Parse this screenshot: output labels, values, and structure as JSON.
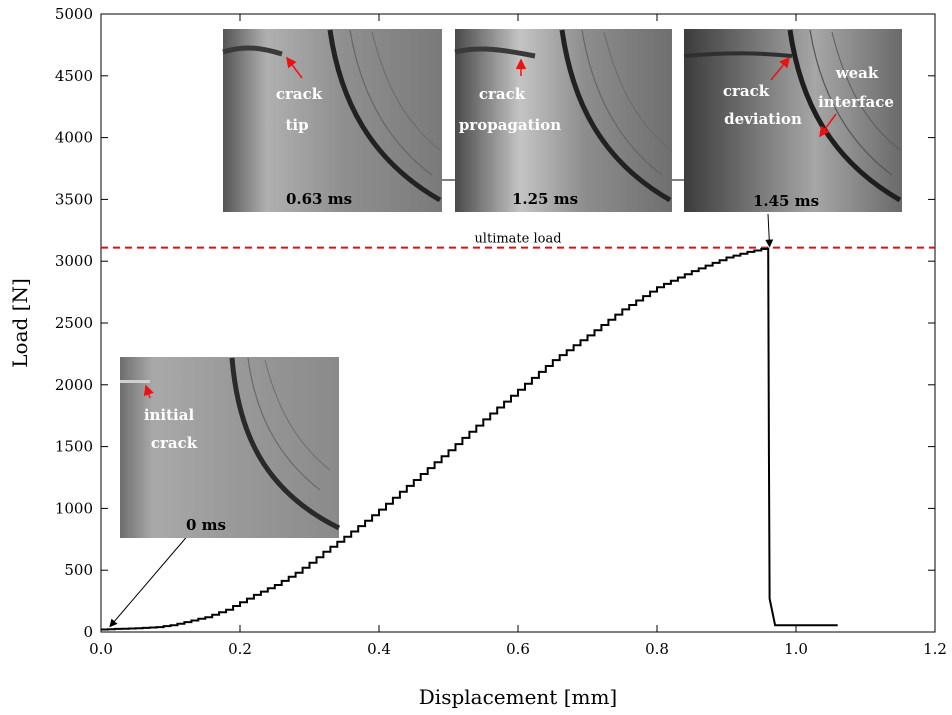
{
  "chart_data": {
    "type": "line",
    "xlabel": "Displacement [mm]",
    "ylabel": "Load [N]",
    "xlim": [
      0,
      1.2
    ],
    "ylim": [
      0,
      5000
    ],
    "xticks": [
      0,
      0.2,
      0.4,
      0.6,
      0.8,
      1.0,
      1.2
    ],
    "xtick_labels": [
      "0.0",
      "0.2",
      "0.4",
      "0.6",
      "0.8",
      "1.0",
      "1.2"
    ],
    "yticks": [
      0,
      500,
      1000,
      1500,
      2000,
      2500,
      3000,
      3500,
      4000,
      4500,
      5000
    ],
    "ytick_labels": [
      "0",
      "500",
      "1000",
      "1500",
      "2000",
      "2500",
      "3000",
      "3500",
      "4000",
      "4500",
      "5000"
    ],
    "grid": false,
    "series": [
      {
        "style": "step",
        "color": "#000000",
        "x": [
          0.0,
          0.02,
          0.05,
          0.08,
          0.1,
          0.12,
          0.15,
          0.18,
          0.2,
          0.22,
          0.25,
          0.28,
          0.3,
          0.32,
          0.35,
          0.38,
          0.4,
          0.45,
          0.5,
          0.55,
          0.6,
          0.65,
          0.7,
          0.75,
          0.8,
          0.85,
          0.9,
          0.93,
          0.96,
          0.961,
          0.962,
          0.97,
          1.06
        ],
        "y": [
          20,
          25,
          30,
          40,
          55,
          80,
          120,
          180,
          240,
          300,
          380,
          480,
          560,
          650,
          770,
          900,
          990,
          1230,
          1470,
          1720,
          1960,
          2200,
          2400,
          2610,
          2790,
          2920,
          3030,
          3075,
          3110,
          1500,
          270,
          55,
          55
        ]
      }
    ],
    "reference_line": {
      "label": "ultimate load",
      "y": 3110,
      "color": "#dd1111"
    },
    "insets": [
      {
        "time": "0 ms",
        "labels": [
          "initial",
          "crack"
        ],
        "points_to": [
          0.01,
          20
        ]
      },
      {
        "time": "0.63 ms",
        "labels": [
          "crack",
          "tip"
        ]
      },
      {
        "time": "1.25 ms",
        "labels": [
          "crack",
          "propagation"
        ]
      },
      {
        "time": "1.45 ms",
        "labels": [
          "crack",
          "deviation",
          "weak",
          "interface"
        ],
        "points_to": [
          0.962,
          3110
        ]
      }
    ]
  }
}
